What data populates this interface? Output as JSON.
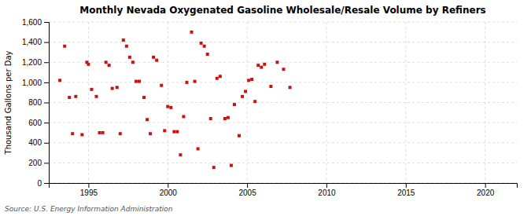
{
  "chart_data": {
    "type": "scatter",
    "title": "Monthly Nevada Oxygenated Gasoline Wholesale/Resale Volume by Refiners",
    "ylabel": "Thousand Gallons per Day",
    "annotations": [
      "Source: U.S. Energy Information Administration"
    ],
    "color": "#cc1111",
    "marker": "square",
    "grid": true,
    "xlim": [
      1992.5,
      2022
    ],
    "ylim": [
      0,
      1600
    ],
    "xticks": [
      1995,
      2000,
      2005,
      2010,
      2015,
      2020
    ],
    "yticks": [
      0,
      200,
      400,
      600,
      800,
      {
        "value": 1000,
        "label": "1,000"
      },
      {
        "value": 1200,
        "label": "1,200"
      },
      {
        "value": 1400,
        "label": "1,400"
      },
      {
        "value": 1600,
        "label": "1,600"
      }
    ],
    "x": [
      1993.2,
      1993.5,
      1993.8,
      1994.0,
      1994.2,
      1994.6,
      1994.9,
      1995.0,
      1995.2,
      1995.5,
      1995.7,
      1995.9,
      1996.1,
      1996.3,
      1996.5,
      1996.8,
      1997.0,
      1997.2,
      1997.4,
      1997.6,
      1997.8,
      1998.0,
      1998.2,
      1998.5,
      1998.7,
      1998.9,
      1999.1,
      1999.3,
      1999.6,
      1999.8,
      2000.0,
      2000.2,
      2000.4,
      2000.6,
      2000.8,
      2001.0,
      2001.2,
      2001.5,
      2001.7,
      2001.9,
      2002.1,
      2002.3,
      2002.5,
      2002.7,
      2002.9,
      2003.1,
      2003.3,
      2003.6,
      2003.8,
      2004.0,
      2004.2,
      2004.5,
      2004.7,
      2004.9,
      2005.1,
      2005.3,
      2005.5,
      2005.7,
      2005.9,
      2006.1,
      2006.5,
      2006.9,
      2007.3,
      2007.7
    ],
    "values": [
      1020,
      1360,
      850,
      490,
      860,
      480,
      1200,
      1180,
      930,
      860,
      500,
      500,
      1200,
      1170,
      940,
      950,
      490,
      1420,
      1360,
      1250,
      1200,
      1010,
      1010,
      850,
      630,
      490,
      1250,
      1220,
      970,
      520,
      760,
      750,
      510,
      510,
      280,
      660,
      1000,
      1500,
      1010,
      340,
      1390,
      1360,
      1280,
      640,
      155,
      1040,
      1060,
      640,
      650,
      175,
      780,
      470,
      860,
      910,
      1020,
      1030,
      810,
      1170,
      1150,
      1180,
      960,
      1200,
      1130,
      950
    ]
  }
}
